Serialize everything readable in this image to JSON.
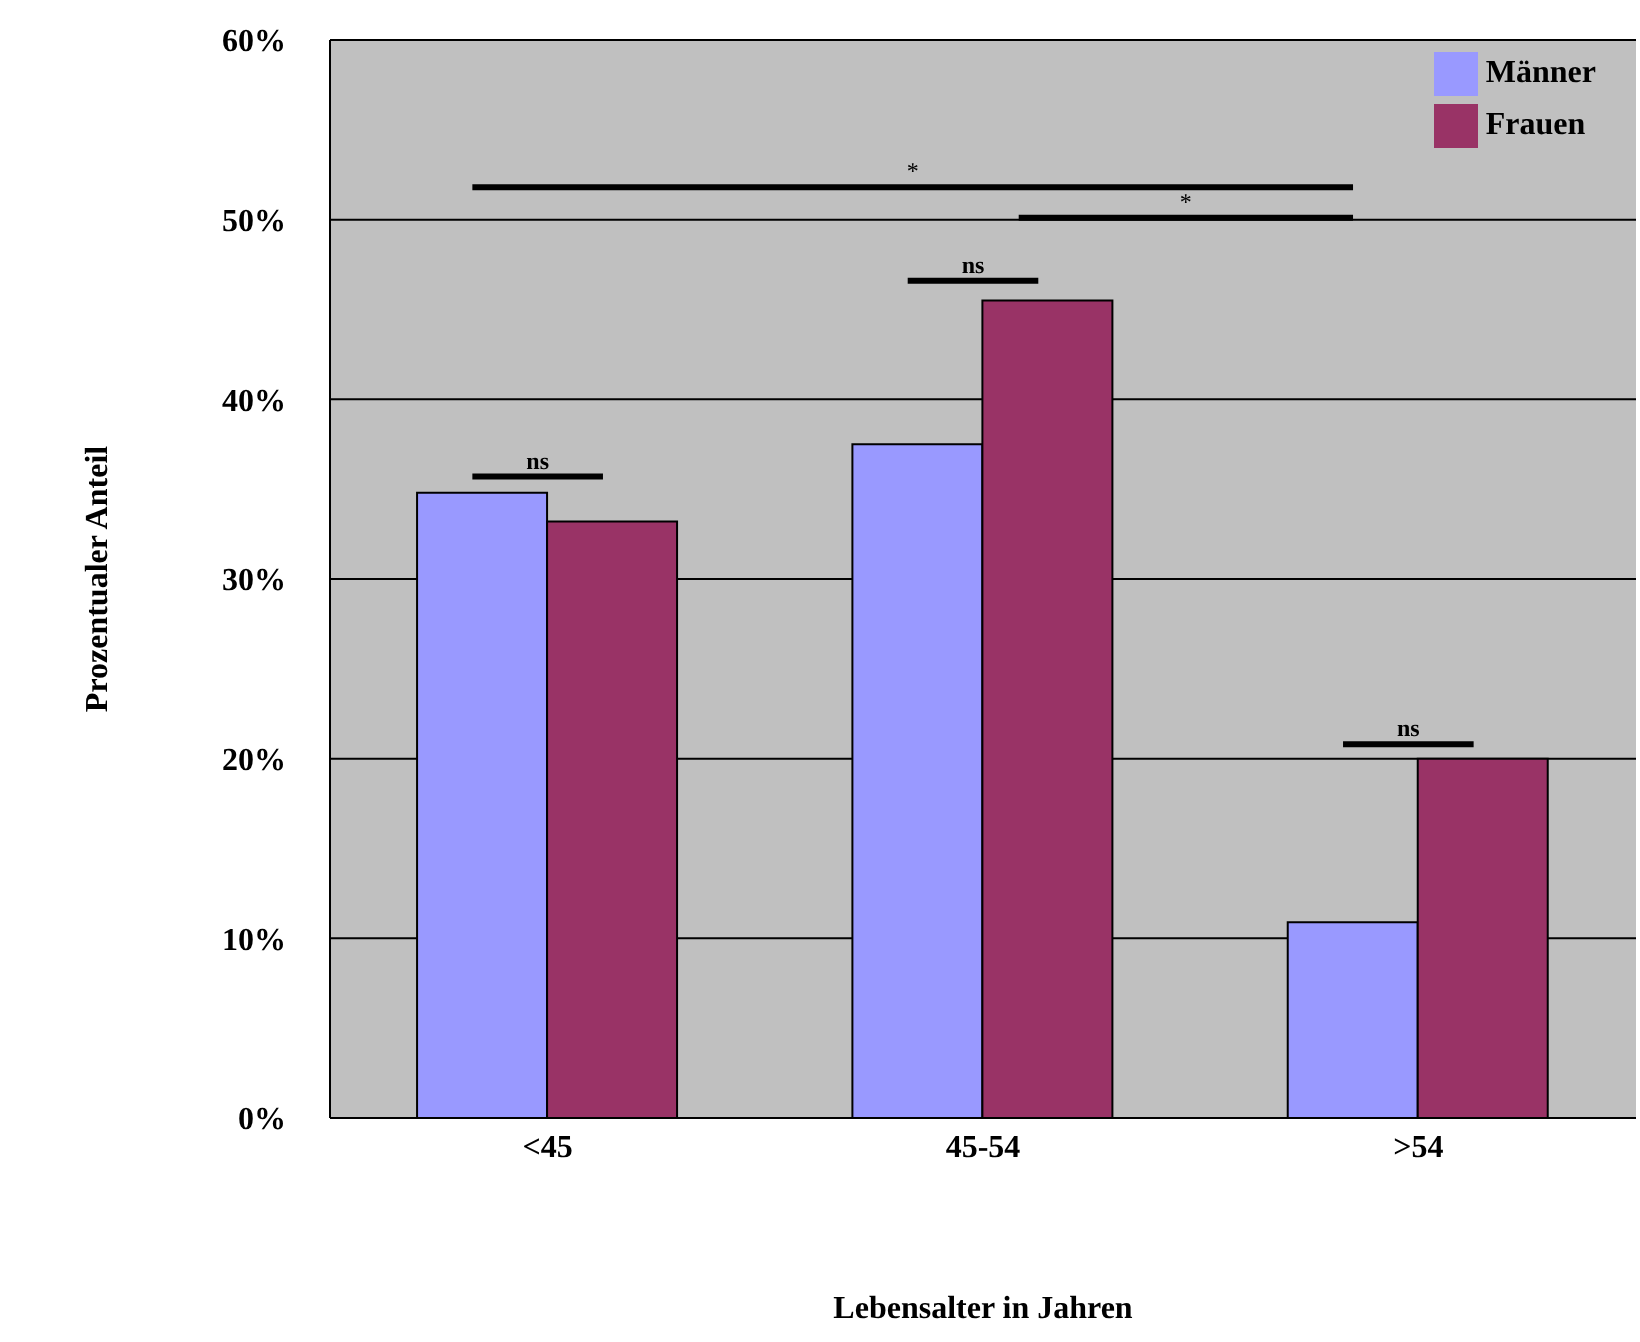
{
  "chart_data": {
    "type": "bar",
    "xlabel": "Lebensalter in Jahren",
    "ylabel": "Prozentualer Anteil",
    "categories": [
      "<45",
      "45-54",
      ">54"
    ],
    "series": [
      {
        "name": "Männer",
        "color": "#9999ff",
        "values": [
          34.8,
          37.5,
          10.9
        ]
      },
      {
        "name": "Frauen",
        "color": "#993366",
        "values": [
          33.2,
          45.5,
          20.0
        ]
      }
    ],
    "ylim": [
      0,
      60
    ],
    "yticks": [
      {
        "value": 0,
        "label": "0%"
      },
      {
        "value": 10,
        "label": "10%"
      },
      {
        "value": 20,
        "label": "20%"
      },
      {
        "value": 30,
        "label": "30%"
      },
      {
        "value": 40,
        "label": "40%"
      },
      {
        "value": 50,
        "label": "50%"
      },
      {
        "value": 60,
        "label": "60%"
      }
    ],
    "grid": "y",
    "legend": "top right",
    "annotations": [
      "ns",
      "ns",
      "ns",
      "*",
      "*"
    ]
  }
}
